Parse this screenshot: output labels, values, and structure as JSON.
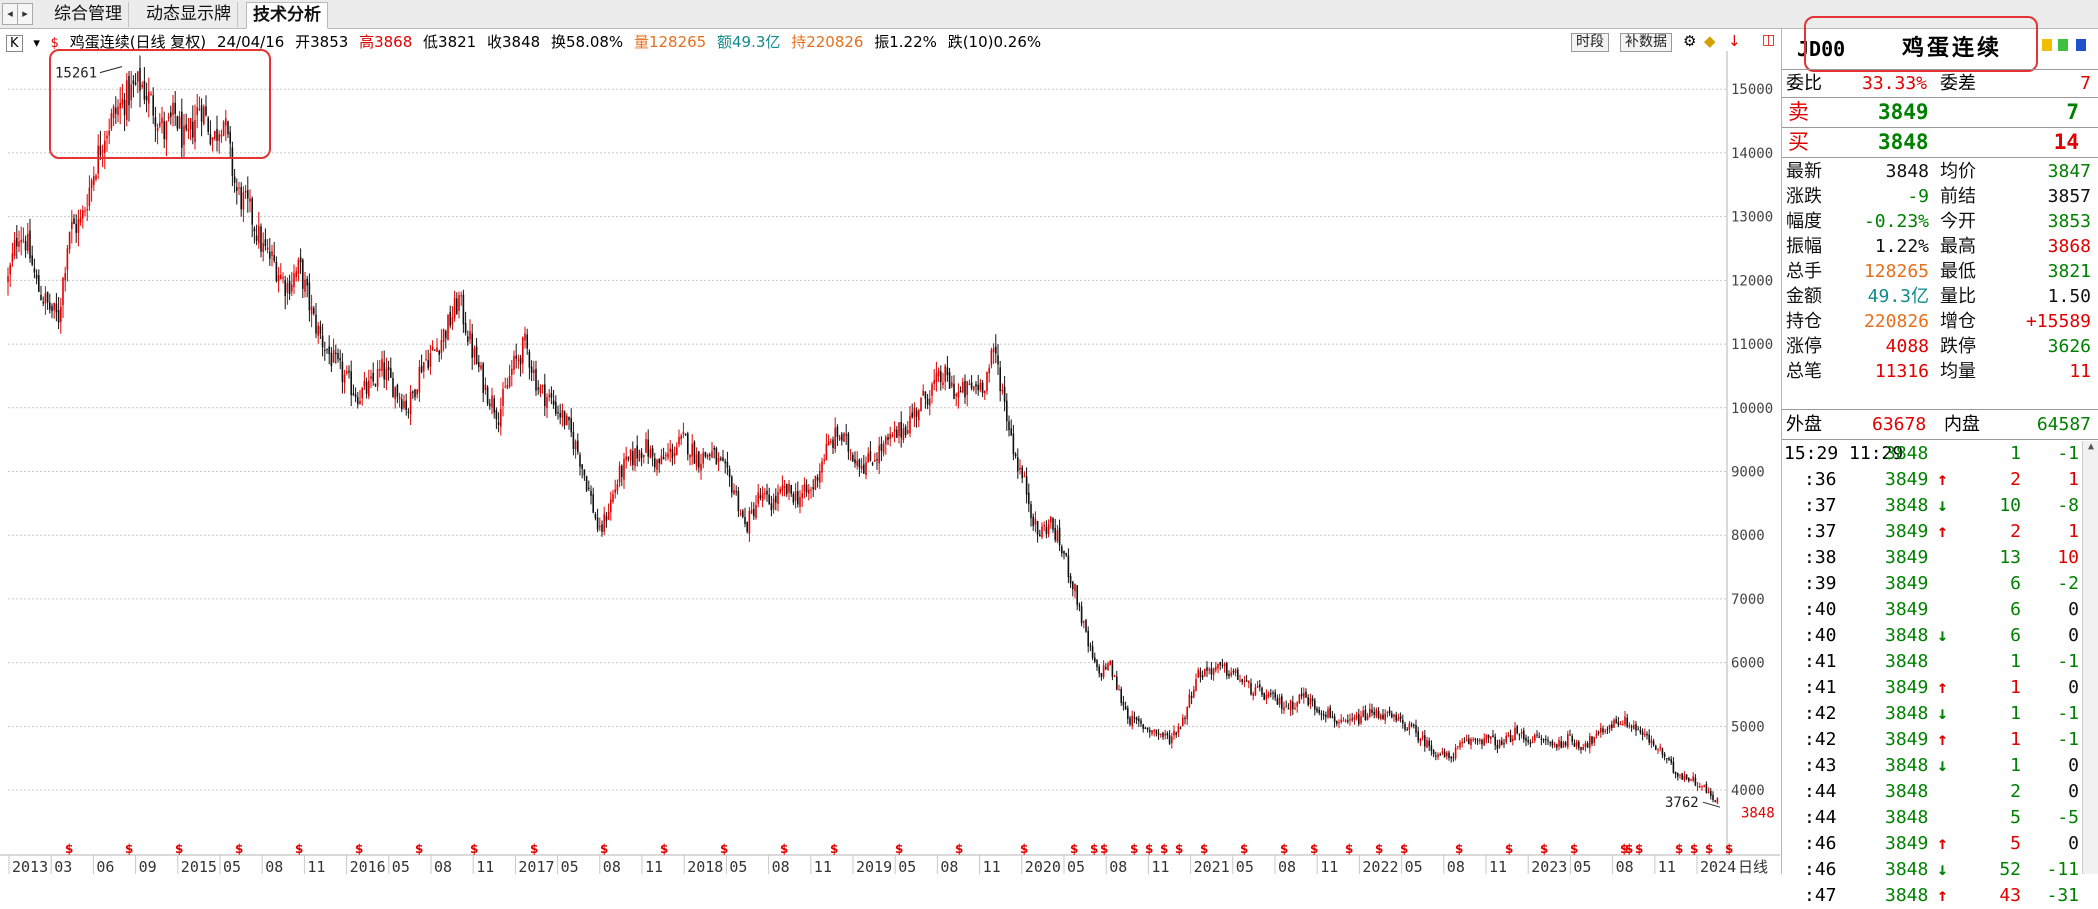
{
  "tabs": [
    {
      "label": "综合管理",
      "active": false
    },
    {
      "label": "动态显示牌",
      "active": false
    },
    {
      "label": "技术分析",
      "active": true
    }
  ],
  "tab_nav": {
    "left": "◂",
    "right": "▸"
  },
  "header": {
    "k_label": "K",
    "arrow": "▾",
    "title": "鸡蛋连续(日线 复权)",
    "date": "24/04/16",
    "open": "开3853",
    "high": "高3868",
    "low": "低3821",
    "close": "收3848",
    "turnover": "换58.08%",
    "volume": "量128265",
    "amount": "额49.3亿",
    "openint": "持220826",
    "amplitude": "振1.22%",
    "fall10": "跌(10)0.26%",
    "btn_period": "时段",
    "btn_supp": "补数据"
  },
  "chart_data": {
    "type": "candlestick",
    "title": "鸡蛋连续(日线 复权)",
    "ylim": [
      3762,
      15261
    ],
    "ticks_y": [
      4000,
      5000,
      6000,
      7000,
      8000,
      9000,
      10000,
      11000,
      12000,
      13000,
      14000,
      15000
    ],
    "x_labels": [
      "2013",
      "03",
      "06",
      "09",
      "2015",
      "05",
      "08",
      "11",
      "2016",
      "05",
      "08",
      "11",
      "2017",
      "05",
      "08",
      "11",
      "2018",
      "05",
      "08",
      "11",
      "2019",
      "05",
      "08",
      "11",
      "2020",
      "05",
      "08",
      "11",
      "2021",
      "05",
      "08",
      "11",
      "2022",
      "05",
      "08",
      "11",
      "2023",
      "05",
      "08",
      "11",
      "2024",
      "日线"
    ],
    "max_label": "15261",
    "min_label": "3762",
    "last_price_label": "3848",
    "series_close": [
      [
        0,
        12000
      ],
      [
        8,
        12800
      ],
      [
        14,
        12600
      ],
      [
        22,
        11900
      ],
      [
        30,
        11600
      ],
      [
        38,
        11400
      ],
      [
        46,
        12800
      ],
      [
        55,
        12900
      ],
      [
        62,
        13500
      ],
      [
        72,
        14300
      ],
      [
        80,
        14600
      ],
      [
        90,
        14900
      ],
      [
        100,
        15100
      ],
      [
        110,
        14700
      ],
      [
        118,
        14300
      ],
      [
        126,
        14600
      ],
      [
        134,
        14100
      ],
      [
        145,
        14800
      ],
      [
        155,
        14200
      ],
      [
        162,
        14600
      ],
      [
        172,
        13400
      ],
      [
        182,
        13100
      ],
      [
        192,
        12500
      ],
      [
        200,
        12300
      ],
      [
        210,
        11900
      ],
      [
        220,
        12200
      ],
      [
        230,
        11400
      ],
      [
        238,
        11000
      ],
      [
        246,
        10700
      ],
      [
        256,
        10400
      ],
      [
        264,
        10200
      ],
      [
        272,
        10300
      ],
      [
        282,
        10600
      ],
      [
        292,
        10300
      ],
      [
        302,
        10000
      ],
      [
        312,
        10700
      ],
      [
        322,
        10900
      ],
      [
        332,
        11300
      ],
      [
        340,
        11700
      ],
      [
        350,
        10900
      ],
      [
        360,
        10300
      ],
      [
        370,
        9900
      ],
      [
        380,
        10600
      ],
      [
        390,
        11000
      ],
      [
        400,
        10300
      ],
      [
        410,
        10100
      ],
      [
        420,
        9800
      ],
      [
        430,
        9300
      ],
      [
        438,
        8700
      ],
      [
        446,
        8000
      ],
      [
        454,
        8500
      ],
      [
        462,
        9000
      ],
      [
        470,
        9200
      ],
      [
        480,
        9400
      ],
      [
        490,
        9100
      ],
      [
        500,
        9300
      ],
      [
        510,
        9500
      ],
      [
        520,
        9200
      ],
      [
        530,
        9300
      ],
      [
        540,
        9000
      ],
      [
        548,
        8700
      ],
      [
        556,
        8100
      ],
      [
        566,
        8600
      ],
      [
        576,
        8500
      ],
      [
        586,
        8700
      ],
      [
        596,
        8600
      ],
      [
        606,
        8700
      ],
      [
        616,
        9300
      ],
      [
        626,
        9600
      ],
      [
        636,
        9300
      ],
      [
        646,
        9100
      ],
      [
        656,
        9300
      ],
      [
        666,
        9500
      ],
      [
        676,
        9700
      ],
      [
        686,
        10000
      ],
      [
        696,
        10300
      ],
      [
        706,
        10500
      ],
      [
        716,
        10200
      ],
      [
        726,
        10300
      ],
      [
        736,
        10400
      ],
      [
        744,
        10900
      ],
      [
        752,
        10000
      ],
      [
        760,
        9200
      ],
      [
        768,
        8700
      ],
      [
        776,
        8000
      ],
      [
        786,
        8200
      ],
      [
        796,
        7700
      ],
      [
        806,
        7000
      ],
      [
        814,
        6300
      ],
      [
        822,
        5800
      ],
      [
        830,
        6000
      ],
      [
        838,
        5500
      ],
      [
        846,
        5100
      ],
      [
        856,
        5000
      ],
      [
        866,
        4900
      ],
      [
        876,
        4800
      ],
      [
        886,
        5100
      ],
      [
        896,
        5800
      ],
      [
        906,
        5900
      ],
      [
        916,
        5900
      ],
      [
        926,
        5800
      ],
      [
        936,
        5600
      ],
      [
        946,
        5500
      ],
      [
        956,
        5400
      ],
      [
        966,
        5300
      ],
      [
        976,
        5500
      ],
      [
        986,
        5300
      ],
      [
        996,
        5200
      ],
      [
        1006,
        5000
      ],
      [
        1016,
        5100
      ],
      [
        1026,
        5200
      ],
      [
        1036,
        5200
      ],
      [
        1046,
        5100
      ],
      [
        1056,
        5000
      ],
      [
        1066,
        4800
      ],
      [
        1076,
        4600
      ],
      [
        1086,
        4500
      ],
      [
        1096,
        4700
      ],
      [
        1106,
        4800
      ],
      [
        1116,
        4800
      ],
      [
        1126,
        4700
      ],
      [
        1136,
        4900
      ],
      [
        1146,
        4800
      ],
      [
        1156,
        4800
      ],
      [
        1166,
        4700
      ],
      [
        1176,
        4800
      ],
      [
        1186,
        4700
      ],
      [
        1196,
        4800
      ],
      [
        1206,
        5000
      ],
      [
        1216,
        5100
      ],
      [
        1226,
        5000
      ],
      [
        1236,
        4800
      ],
      [
        1246,
        4600
      ],
      [
        1256,
        4300
      ],
      [
        1266,
        4200
      ],
      [
        1276,
        4100
      ],
      [
        1284,
        3900
      ],
      [
        1290,
        3848
      ]
    ]
  },
  "right_panel": {
    "code": "JD00",
    "name": "鸡蛋连续",
    "weibi_label": "委比",
    "weibi_val": "33.33%",
    "weicha_label": "委差",
    "weicha_val": "7",
    "sell_label": "卖",
    "sell_price": "3849",
    "sell_vol": "7",
    "buy_label": "买",
    "buy_price": "3848",
    "buy_vol": "14",
    "stats": [
      {
        "l1": "最新",
        "v1": "3848",
        "c1": "black",
        "l2": "均价",
        "v2": "3847",
        "c2": "green"
      },
      {
        "l1": "涨跌",
        "v1": "-9",
        "c1": "green",
        "l2": "前结",
        "v2": "3857",
        "c2": "black"
      },
      {
        "l1": "幅度",
        "v1": "-0.23%",
        "c1": "green",
        "l2": "今开",
        "v2": "3853",
        "c2": "green"
      },
      {
        "l1": "振幅",
        "v1": "1.22%",
        "c1": "black",
        "l2": "最高",
        "v2": "3868",
        "c2": "red"
      },
      {
        "l1": "总手",
        "v1": "128265",
        "c1": "orange",
        "l2": "最低",
        "v2": "3821",
        "c2": "green"
      },
      {
        "l1": "金额",
        "v1": "49.3亿",
        "c1": "teal",
        "l2": "量比",
        "v2": "1.50",
        "c2": "black"
      },
      {
        "l1": "持仓",
        "v1": "220826",
        "c1": "orange",
        "l2": "增仓",
        "v2": "+15589",
        "c2": "red"
      },
      {
        "l1": "涨停",
        "v1": "4088",
        "c1": "red",
        "l2": "跌停",
        "v2": "3626",
        "c2": "green"
      },
      {
        "l1": "总笔",
        "v1": "11316",
        "c1": "red",
        "l2": "均量",
        "v2": "11",
        "c2": "red"
      }
    ],
    "outer_label": "外盘",
    "outer_val": "63678",
    "inner_label": "内盘",
    "inner_val": "64587",
    "ticks": [
      {
        "time": "15:29 11:29",
        "price": "3848",
        "dir": "",
        "vol": "1",
        "chg": "-1",
        "chgc": "green"
      },
      {
        "time": ":36",
        "price": "3849",
        "dir": "↑",
        "vol": "2",
        "chg": "1",
        "chgc": "red"
      },
      {
        "time": ":37",
        "price": "3848",
        "dir": "↓",
        "vol": "10",
        "chg": "-8",
        "chgc": "green"
      },
      {
        "time": ":37",
        "price": "3849",
        "dir": "↑",
        "vol": "2",
        "chg": "1",
        "chgc": "red"
      },
      {
        "time": ":38",
        "price": "3849",
        "dir": "",
        "vol": "13",
        "chg": "10",
        "chgc": "red"
      },
      {
        "time": ":39",
        "price": "3849",
        "dir": "",
        "vol": "6",
        "chg": "-2",
        "chgc": "green"
      },
      {
        "time": ":40",
        "price": "3849",
        "dir": "",
        "vol": "6",
        "chg": "0",
        "chgc": "black"
      },
      {
        "time": ":40",
        "price": "3848",
        "dir": "↓",
        "vol": "6",
        "chg": "0",
        "chgc": "black"
      },
      {
        "time": ":41",
        "price": "3848",
        "dir": "",
        "vol": "1",
        "chg": "-1",
        "chgc": "green"
      },
      {
        "time": ":41",
        "price": "3849",
        "dir": "↑",
        "vol": "1",
        "chg": "0",
        "chgc": "black"
      },
      {
        "time": ":42",
        "price": "3848",
        "dir": "↓",
        "vol": "1",
        "chg": "-1",
        "chgc": "green"
      },
      {
        "time": ":42",
        "price": "3849",
        "dir": "↑",
        "vol": "1",
        "chg": "-1",
        "chgc": "green"
      },
      {
        "time": ":43",
        "price": "3848",
        "dir": "↓",
        "vol": "1",
        "chg": "0",
        "chgc": "black"
      },
      {
        "time": ":44",
        "price": "3848",
        "dir": "",
        "vol": "2",
        "chg": "0",
        "chgc": "black"
      },
      {
        "time": ":44",
        "price": "3848",
        "dir": "",
        "vol": "5",
        "chg": "-5",
        "chgc": "green"
      },
      {
        "time": ":46",
        "price": "3849",
        "dir": "↑",
        "vol": "5",
        "chg": "0",
        "chgc": "black"
      },
      {
        "time": ":46",
        "price": "3848",
        "dir": "↓",
        "vol": "52",
        "chg": "-11",
        "chgc": "green"
      },
      {
        "time": ":47",
        "price": "3848",
        "dir": "↑",
        "vol": "43",
        "chg": "-31",
        "chgc": "green"
      }
    ]
  },
  "colors": {
    "up": "#e00000",
    "down": "#111111",
    "grid": "#c8c8c8",
    "annot": "#e63232"
  }
}
